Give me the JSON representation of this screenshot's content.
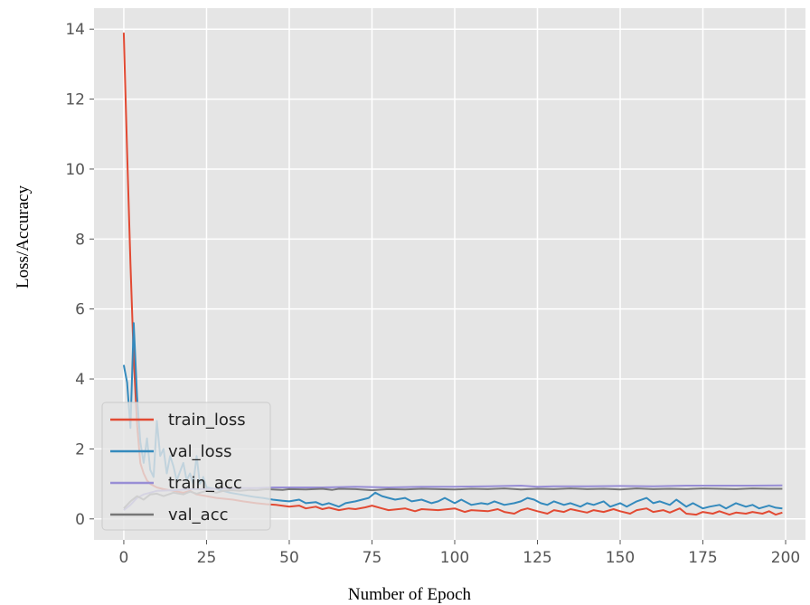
{
  "chart_data": {
    "type": "line",
    "xlabel": "Number of Epoch",
    "ylabel": "Loss/Accuracy",
    "xlim": [
      -9,
      206
    ],
    "ylim": [
      -0.6,
      14.6
    ],
    "xticks": [
      0,
      25,
      50,
      75,
      100,
      125,
      150,
      175,
      200
    ],
    "yticks": [
      0,
      2,
      4,
      6,
      8,
      10,
      12,
      14
    ],
    "grid": true,
    "legend_position": "lower-left",
    "series": [
      {
        "name": "train_loss",
        "color": "#E24A33",
        "points": [
          [
            0,
            13.9
          ],
          [
            1,
            10.5
          ],
          [
            2,
            7.3
          ],
          [
            3,
            4.6
          ],
          [
            4,
            2.7
          ],
          [
            5,
            1.6
          ],
          [
            6,
            1.3
          ],
          [
            7,
            1.1
          ],
          [
            8,
            1.0
          ],
          [
            10,
            0.9
          ],
          [
            12,
            0.85
          ],
          [
            15,
            0.8
          ],
          [
            18,
            0.75
          ],
          [
            20,
            0.8
          ],
          [
            22,
            0.7
          ],
          [
            25,
            0.65
          ],
          [
            28,
            0.6
          ],
          [
            30,
            0.58
          ],
          [
            33,
            0.55
          ],
          [
            36,
            0.5
          ],
          [
            40,
            0.45
          ],
          [
            43,
            0.42
          ],
          [
            46,
            0.4
          ],
          [
            50,
            0.35
          ],
          [
            53,
            0.38
          ],
          [
            55,
            0.3
          ],
          [
            58,
            0.35
          ],
          [
            60,
            0.28
          ],
          [
            62,
            0.32
          ],
          [
            65,
            0.25
          ],
          [
            68,
            0.3
          ],
          [
            70,
            0.28
          ],
          [
            73,
            0.33
          ],
          [
            75,
            0.38
          ],
          [
            78,
            0.3
          ],
          [
            80,
            0.25
          ],
          [
            85,
            0.3
          ],
          [
            88,
            0.22
          ],
          [
            90,
            0.28
          ],
          [
            95,
            0.25
          ],
          [
            100,
            0.3
          ],
          [
            103,
            0.2
          ],
          [
            105,
            0.25
          ],
          [
            110,
            0.22
          ],
          [
            113,
            0.28
          ],
          [
            115,
            0.2
          ],
          [
            118,
            0.15
          ],
          [
            120,
            0.25
          ],
          [
            122,
            0.3
          ],
          [
            125,
            0.22
          ],
          [
            128,
            0.15
          ],
          [
            130,
            0.25
          ],
          [
            133,
            0.2
          ],
          [
            135,
            0.28
          ],
          [
            138,
            0.22
          ],
          [
            140,
            0.18
          ],
          [
            142,
            0.25
          ],
          [
            145,
            0.2
          ],
          [
            148,
            0.28
          ],
          [
            150,
            0.22
          ],
          [
            153,
            0.15
          ],
          [
            155,
            0.25
          ],
          [
            158,
            0.3
          ],
          [
            160,
            0.2
          ],
          [
            163,
            0.25
          ],
          [
            165,
            0.18
          ],
          [
            168,
            0.3
          ],
          [
            170,
            0.15
          ],
          [
            173,
            0.12
          ],
          [
            175,
            0.2
          ],
          [
            178,
            0.15
          ],
          [
            180,
            0.22
          ],
          [
            183,
            0.12
          ],
          [
            185,
            0.18
          ],
          [
            188,
            0.15
          ],
          [
            190,
            0.2
          ],
          [
            193,
            0.15
          ],
          [
            195,
            0.22
          ],
          [
            197,
            0.12
          ],
          [
            199,
            0.18
          ]
        ]
      },
      {
        "name": "val_loss",
        "color": "#348ABD",
        "points": [
          [
            0,
            4.4
          ],
          [
            1,
            3.9
          ],
          [
            2,
            2.6
          ],
          [
            3,
            5.6
          ],
          [
            4,
            3.5
          ],
          [
            5,
            2.2
          ],
          [
            6,
            1.6
          ],
          [
            7,
            2.3
          ],
          [
            8,
            1.4
          ],
          [
            9,
            1.2
          ],
          [
            10,
            2.8
          ],
          [
            11,
            1.8
          ],
          [
            12,
            2.0
          ],
          [
            13,
            1.3
          ],
          [
            14,
            1.8
          ],
          [
            15,
            1.5
          ],
          [
            16,
            1.1
          ],
          [
            18,
            1.6
          ],
          [
            19,
            1.1
          ],
          [
            20,
            1.3
          ],
          [
            21,
            1.0
          ],
          [
            22,
            1.8
          ],
          [
            23,
            1.0
          ],
          [
            24,
            1.2
          ],
          [
            25,
            0.9
          ],
          [
            28,
            0.85
          ],
          [
            30,
            0.8
          ],
          [
            32,
            0.75
          ],
          [
            35,
            0.7
          ],
          [
            38,
            0.65
          ],
          [
            40,
            0.62
          ],
          [
            42,
            0.6
          ],
          [
            45,
            0.55
          ],
          [
            48,
            0.52
          ],
          [
            50,
            0.5
          ],
          [
            53,
            0.55
          ],
          [
            55,
            0.45
          ],
          [
            58,
            0.48
          ],
          [
            60,
            0.4
          ],
          [
            62,
            0.45
          ],
          [
            65,
            0.35
          ],
          [
            67,
            0.45
          ],
          [
            70,
            0.5
          ],
          [
            72,
            0.55
          ],
          [
            74,
            0.6
          ],
          [
            76,
            0.75
          ],
          [
            78,
            0.65
          ],
          [
            80,
            0.6
          ],
          [
            82,
            0.55
          ],
          [
            85,
            0.6
          ],
          [
            87,
            0.5
          ],
          [
            90,
            0.55
          ],
          [
            93,
            0.45
          ],
          [
            95,
            0.5
          ],
          [
            97,
            0.6
          ],
          [
            100,
            0.45
          ],
          [
            102,
            0.55
          ],
          [
            105,
            0.4
          ],
          [
            108,
            0.45
          ],
          [
            110,
            0.42
          ],
          [
            112,
            0.5
          ],
          [
            115,
            0.4
          ],
          [
            118,
            0.45
          ],
          [
            120,
            0.5
          ],
          [
            122,
            0.6
          ],
          [
            124,
            0.55
          ],
          [
            126,
            0.45
          ],
          [
            128,
            0.4
          ],
          [
            130,
            0.5
          ],
          [
            133,
            0.4
          ],
          [
            135,
            0.45
          ],
          [
            138,
            0.35
          ],
          [
            140,
            0.45
          ],
          [
            142,
            0.4
          ],
          [
            145,
            0.5
          ],
          [
            147,
            0.35
          ],
          [
            150,
            0.45
          ],
          [
            152,
            0.35
          ],
          [
            155,
            0.5
          ],
          [
            158,
            0.6
          ],
          [
            160,
            0.45
          ],
          [
            162,
            0.5
          ],
          [
            165,
            0.4
          ],
          [
            167,
            0.55
          ],
          [
            170,
            0.35
          ],
          [
            172,
            0.45
          ],
          [
            175,
            0.3
          ],
          [
            177,
            0.35
          ],
          [
            180,
            0.4
          ],
          [
            182,
            0.3
          ],
          [
            185,
            0.45
          ],
          [
            188,
            0.35
          ],
          [
            190,
            0.4
          ],
          [
            192,
            0.3
          ],
          [
            195,
            0.38
          ],
          [
            197,
            0.32
          ],
          [
            199,
            0.3
          ]
        ]
      },
      {
        "name": "train_acc",
        "color": "#988ED5",
        "points": [
          [
            0,
            0.25
          ],
          [
            2,
            0.4
          ],
          [
            4,
            0.6
          ],
          [
            6,
            0.7
          ],
          [
            8,
            0.75
          ],
          [
            10,
            0.8
          ],
          [
            15,
            0.82
          ],
          [
            20,
            0.85
          ],
          [
            25,
            0.85
          ],
          [
            30,
            0.87
          ],
          [
            35,
            0.88
          ],
          [
            40,
            0.88
          ],
          [
            45,
            0.9
          ],
          [
            50,
            0.9
          ],
          [
            60,
            0.9
          ],
          [
            70,
            0.92
          ],
          [
            80,
            0.9
          ],
          [
            90,
            0.92
          ],
          [
            100,
            0.92
          ],
          [
            110,
            0.93
          ],
          [
            120,
            0.95
          ],
          [
            125,
            0.92
          ],
          [
            130,
            0.93
          ],
          [
            140,
            0.93
          ],
          [
            150,
            0.94
          ],
          [
            160,
            0.93
          ],
          [
            170,
            0.95
          ],
          [
            180,
            0.95
          ],
          [
            190,
            0.95
          ],
          [
            199,
            0.96
          ]
        ]
      },
      {
        "name": "val_acc",
        "color": "#777777",
        "points": [
          [
            0,
            0.3
          ],
          [
            2,
            0.5
          ],
          [
            4,
            0.65
          ],
          [
            6,
            0.55
          ],
          [
            8,
            0.7
          ],
          [
            10,
            0.72
          ],
          [
            12,
            0.65
          ],
          [
            15,
            0.75
          ],
          [
            18,
            0.7
          ],
          [
            20,
            0.78
          ],
          [
            22,
            0.72
          ],
          [
            25,
            0.8
          ],
          [
            28,
            0.75
          ],
          [
            30,
            0.8
          ],
          [
            33,
            0.82
          ],
          [
            35,
            0.8
          ],
          [
            38,
            0.83
          ],
          [
            40,
            0.82
          ],
          [
            43,
            0.85
          ],
          [
            45,
            0.84
          ],
          [
            48,
            0.83
          ],
          [
            50,
            0.85
          ],
          [
            55,
            0.84
          ],
          [
            60,
            0.86
          ],
          [
            63,
            0.83
          ],
          [
            65,
            0.86
          ],
          [
            70,
            0.85
          ],
          [
            75,
            0.82
          ],
          [
            80,
            0.85
          ],
          [
            85,
            0.84
          ],
          [
            90,
            0.86
          ],
          [
            95,
            0.85
          ],
          [
            100,
            0.84
          ],
          [
            105,
            0.86
          ],
          [
            110,
            0.85
          ],
          [
            115,
            0.87
          ],
          [
            120,
            0.84
          ],
          [
            125,
            0.86
          ],
          [
            130,
            0.85
          ],
          [
            135,
            0.87
          ],
          [
            140,
            0.85
          ],
          [
            145,
            0.86
          ],
          [
            150,
            0.84
          ],
          [
            155,
            0.87
          ],
          [
            160,
            0.85
          ],
          [
            165,
            0.86
          ],
          [
            170,
            0.85
          ],
          [
            175,
            0.87
          ],
          [
            180,
            0.86
          ],
          [
            185,
            0.85
          ],
          [
            190,
            0.87
          ],
          [
            195,
            0.86
          ],
          [
            199,
            0.86
          ]
        ]
      }
    ]
  }
}
